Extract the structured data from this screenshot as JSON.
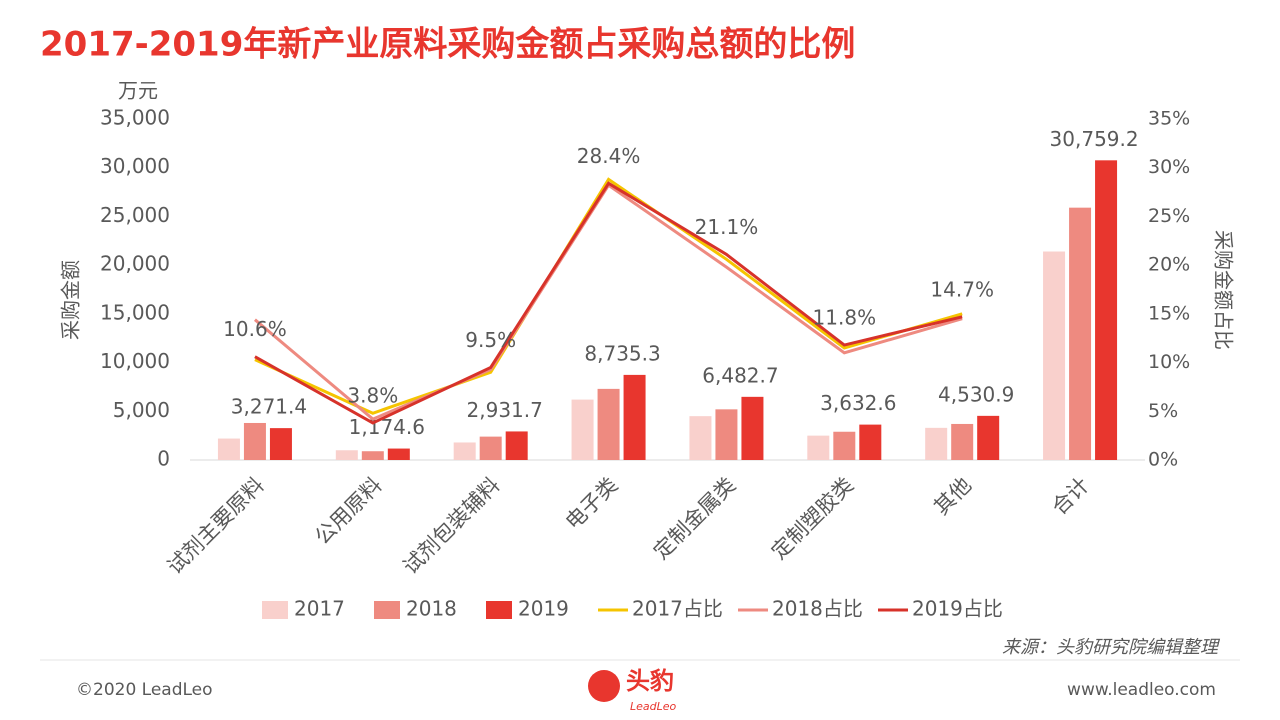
{
  "chart_data": {
    "type": "bar",
    "title": "2017-2019年新产业原料采购金额占采购总额的比例",
    "y_unit": "万元",
    "ylabel": "采购金额",
    "y2label": "采购金额占比",
    "categories": [
      "试剂主要原料",
      "公用原料",
      "试剂包装辅料",
      "电子类",
      "定制金属类",
      "定制塑胶类",
      "其他",
      "合计"
    ],
    "series": [
      {
        "name": "2017",
        "type": "bar",
        "color": "#f9d0cc",
        "values": [
          2200,
          1000,
          1800,
          6200,
          4500,
          2500,
          3300,
          21400
        ]
      },
      {
        "name": "2018",
        "type": "bar",
        "color": "#ee8a80",
        "values": [
          3800,
          900,
          2400,
          7300,
          5200,
          2900,
          3700,
          25900
        ]
      },
      {
        "name": "2019",
        "type": "bar",
        "color": "#e8362e",
        "values": [
          3271.4,
          1174.6,
          2931.7,
          8735.3,
          6482.7,
          3632.6,
          4530.9,
          30759.2
        ],
        "value_labels": [
          "3,271.4",
          "1,174.6",
          "2,931.7",
          "8,735.3",
          "6,482.7",
          "3,632.6",
          "4,530.9",
          "30,759.2"
        ]
      },
      {
        "name": "2017占比",
        "type": "line",
        "axis": "y2",
        "color": "#f5c400",
        "values": [
          10.3,
          4.8,
          9.0,
          28.8,
          20.6,
          11.5,
          15.0,
          null
        ]
      },
      {
        "name": "2018占比",
        "type": "line",
        "axis": "y2",
        "color": "#ee8a80",
        "values": [
          14.4,
          4.2,
          9.3,
          28.2,
          19.8,
          11.0,
          14.5,
          null
        ]
      },
      {
        "name": "2019占比",
        "type": "line",
        "axis": "y2",
        "color": "#d7322a",
        "values": [
          10.6,
          3.8,
          9.5,
          28.4,
          21.1,
          11.8,
          14.7,
          null
        ],
        "value_labels": [
          "10.6%",
          "3.8%",
          "9.5%",
          "28.4%",
          "21.1%",
          "11.8%",
          "14.7%",
          null
        ]
      }
    ],
    "ylim": [
      0,
      35000
    ],
    "yticks": [
      0,
      {
        "value": 5000,
        "label": "5,000"
      },
      {
        "value": 10000,
        "label": "10,000"
      },
      {
        "value": 15000,
        "label": "15,000"
      },
      {
        "value": 20000,
        "label": "20,000"
      },
      {
        "value": 25000,
        "label": "25,000"
      },
      {
        "value": 30000,
        "label": "30,000"
      },
      {
        "value": 35000,
        "label": "35,000"
      }
    ],
    "y2lim": [
      0,
      35
    ],
    "y2ticks": [
      {
        "value": 0,
        "label": "0%"
      },
      {
        "value": 5,
        "label": "5%"
      },
      {
        "value": 10,
        "label": "10%"
      },
      {
        "value": 15,
        "label": "15%"
      },
      {
        "value": 20,
        "label": "20%"
      },
      {
        "value": 25,
        "label": "25%"
      },
      {
        "value": 30,
        "label": "30%"
      },
      {
        "value": 35,
        "label": "35%"
      }
    ],
    "legend": "bottom",
    "source": "来源：头豹研究院编辑整理"
  },
  "footer": {
    "copyright": "©2020 LeadLeo",
    "logo": "头豹",
    "logo_sub": "LeadLeo",
    "url": "www.leadleo.com"
  }
}
